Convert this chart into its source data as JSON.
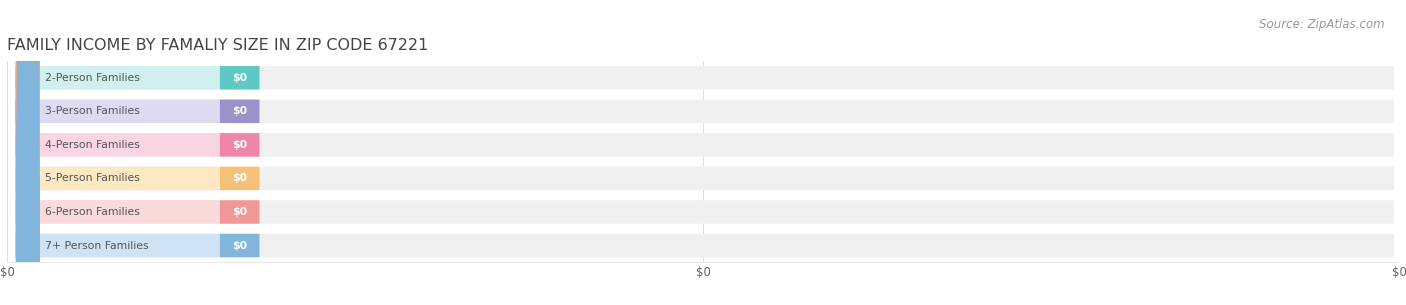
{
  "title": "FAMILY INCOME BY FAMALIY SIZE IN ZIP CODE 67221",
  "source": "Source: ZipAtlas.com",
  "categories": [
    "2-Person Families",
    "3-Person Families",
    "4-Person Families",
    "5-Person Families",
    "6-Person Families",
    "7+ Person Families"
  ],
  "values": [
    0,
    0,
    0,
    0,
    0,
    0
  ],
  "bar_colors": [
    "#5dc8c4",
    "#9b92cc",
    "#ef86a8",
    "#f5c07a",
    "#f09898",
    "#82b5dc"
  ],
  "label_bg_colors": [
    "#cff0ee",
    "#dddaf2",
    "#fad5e4",
    "#fce9c4",
    "#fadada",
    "#cfe3f5"
  ],
  "value_labels": [
    "$0",
    "$0",
    "$0",
    "$0",
    "$0",
    "$0"
  ],
  "x_tick_labels": [
    "$0",
    "$0",
    "$0"
  ],
  "background_color": "#ffffff",
  "bar_bg_color": "#f0f0f0",
  "title_fontsize": 11.5,
  "title_color": "#444444",
  "source_fontsize": 8.5,
  "source_color": "#999999",
  "label_text_color": "#555555",
  "value_text_color": "#ffffff"
}
